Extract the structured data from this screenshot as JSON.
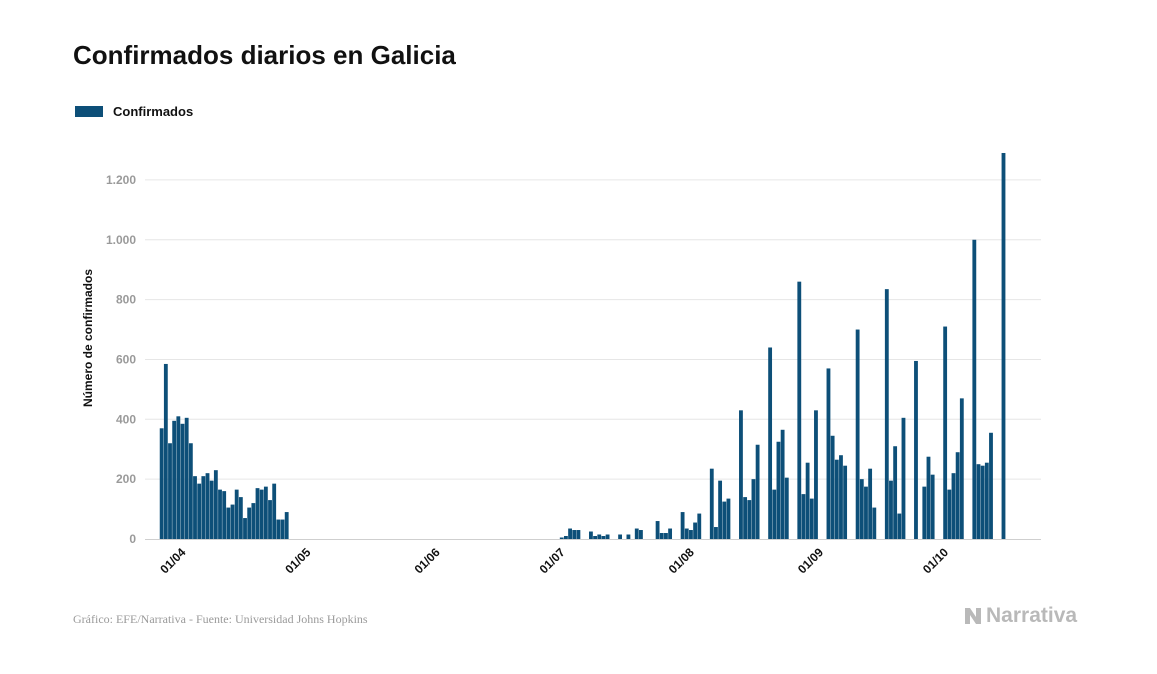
{
  "header": {
    "title": "Confirmados diarios en Galicia"
  },
  "legend": {
    "label": "Confirmados"
  },
  "colors": {
    "bar": "#0d4f78",
    "grid": "#e6e6e6",
    "axis": "#cfcfcf",
    "tick_label": "#9a9a9a",
    "text": "#111111"
  },
  "footer": {
    "source": "Gráfico: EFE/Narrativa - Fuente: Universidad Johns Hopkins",
    "brand": "Narrativa",
    "brand_icon": "narrativa-logo-icon"
  },
  "chart_data": {
    "type": "bar",
    "title": "Confirmados diarios en Galicia",
    "xlabel": "",
    "ylabel": "Número de confirmados",
    "ylim": [
      0,
      1300
    ],
    "yticks": [
      0,
      200,
      400,
      600,
      800,
      1000,
      1200
    ],
    "ytick_labels": [
      "0",
      "200",
      "400",
      "600",
      "800",
      "1.000",
      "1.200"
    ],
    "x_range": [
      "2020-03-24",
      "2020-10-25"
    ],
    "xticks": [
      "2020-04-01",
      "2020-05-01",
      "2020-06-01",
      "2020-07-01",
      "2020-08-01",
      "2020-09-01",
      "2020-10-01"
    ],
    "xtick_labels": [
      "01/04",
      "01/05",
      "01/06",
      "01/07",
      "01/08",
      "01/09",
      "01/10"
    ],
    "grid": true,
    "legend_position": "top-left",
    "series": [
      {
        "name": "Confirmados",
        "points": [
          [
            "2020-03-28",
            370
          ],
          [
            "2020-03-29",
            585
          ],
          [
            "2020-03-30",
            320
          ],
          [
            "2020-03-31",
            395
          ],
          [
            "2020-04-01",
            410
          ],
          [
            "2020-04-02",
            385
          ],
          [
            "2020-04-03",
            405
          ],
          [
            "2020-04-04",
            320
          ],
          [
            "2020-04-05",
            210
          ],
          [
            "2020-04-06",
            185
          ],
          [
            "2020-04-07",
            210
          ],
          [
            "2020-04-08",
            220
          ],
          [
            "2020-04-09",
            195
          ],
          [
            "2020-04-10",
            230
          ],
          [
            "2020-04-11",
            165
          ],
          [
            "2020-04-12",
            160
          ],
          [
            "2020-04-13",
            105
          ],
          [
            "2020-04-14",
            115
          ],
          [
            "2020-04-15",
            165
          ],
          [
            "2020-04-16",
            140
          ],
          [
            "2020-04-17",
            70
          ],
          [
            "2020-04-18",
            105
          ],
          [
            "2020-04-19",
            120
          ],
          [
            "2020-04-20",
            170
          ],
          [
            "2020-04-21",
            165
          ],
          [
            "2020-04-22",
            175
          ],
          [
            "2020-04-23",
            130
          ],
          [
            "2020-04-24",
            185
          ],
          [
            "2020-04-25",
            65
          ],
          [
            "2020-04-26",
            65
          ],
          [
            "2020-04-27",
            90
          ],
          [
            "2020-07-02",
            5
          ],
          [
            "2020-07-03",
            10
          ],
          [
            "2020-07-04",
            35
          ],
          [
            "2020-07-05",
            30
          ],
          [
            "2020-07-06",
            30
          ],
          [
            "2020-07-09",
            25
          ],
          [
            "2020-07-10",
            10
          ],
          [
            "2020-07-11",
            15
          ],
          [
            "2020-07-12",
            10
          ],
          [
            "2020-07-13",
            15
          ],
          [
            "2020-07-16",
            15
          ],
          [
            "2020-07-18",
            15
          ],
          [
            "2020-07-20",
            35
          ],
          [
            "2020-07-21",
            30
          ],
          [
            "2020-07-25",
            60
          ],
          [
            "2020-07-26",
            20
          ],
          [
            "2020-07-27",
            20
          ],
          [
            "2020-07-28",
            35
          ],
          [
            "2020-07-31",
            90
          ],
          [
            "2020-08-01",
            35
          ],
          [
            "2020-08-02",
            30
          ],
          [
            "2020-08-03",
            55
          ],
          [
            "2020-08-04",
            85
          ],
          [
            "2020-08-07",
            235
          ],
          [
            "2020-08-08",
            40
          ],
          [
            "2020-08-09",
            195
          ],
          [
            "2020-08-10",
            125
          ],
          [
            "2020-08-11",
            135
          ],
          [
            "2020-08-14",
            430
          ],
          [
            "2020-08-15",
            140
          ],
          [
            "2020-08-16",
            130
          ],
          [
            "2020-08-17",
            200
          ],
          [
            "2020-08-18",
            315
          ],
          [
            "2020-08-21",
            640
          ],
          [
            "2020-08-22",
            165
          ],
          [
            "2020-08-23",
            325
          ],
          [
            "2020-08-24",
            365
          ],
          [
            "2020-08-25",
            205
          ],
          [
            "2020-08-28",
            860
          ],
          [
            "2020-08-29",
            150
          ],
          [
            "2020-08-30",
            255
          ],
          [
            "2020-08-31",
            135
          ],
          [
            "2020-09-01",
            430
          ],
          [
            "2020-09-04",
            570
          ],
          [
            "2020-09-05",
            345
          ],
          [
            "2020-09-06",
            265
          ],
          [
            "2020-09-07",
            280
          ],
          [
            "2020-09-08",
            245
          ],
          [
            "2020-09-11",
            700
          ],
          [
            "2020-09-12",
            200
          ],
          [
            "2020-09-13",
            175
          ],
          [
            "2020-09-14",
            235
          ],
          [
            "2020-09-15",
            105
          ],
          [
            "2020-09-18",
            835
          ],
          [
            "2020-09-19",
            195
          ],
          [
            "2020-09-20",
            310
          ],
          [
            "2020-09-21",
            85
          ],
          [
            "2020-09-22",
            405
          ],
          [
            "2020-09-25",
            595
          ],
          [
            "2020-09-27",
            175
          ],
          [
            "2020-09-28",
            275
          ],
          [
            "2020-09-29",
            215
          ],
          [
            "2020-10-02",
            710
          ],
          [
            "2020-10-03",
            165
          ],
          [
            "2020-10-04",
            220
          ],
          [
            "2020-10-05",
            290
          ],
          [
            "2020-10-06",
            470
          ],
          [
            "2020-10-09",
            1000
          ],
          [
            "2020-10-10",
            250
          ],
          [
            "2020-10-11",
            245
          ],
          [
            "2020-10-12",
            255
          ],
          [
            "2020-10-13",
            355
          ],
          [
            "2020-10-16",
            1290
          ]
        ]
      }
    ]
  }
}
